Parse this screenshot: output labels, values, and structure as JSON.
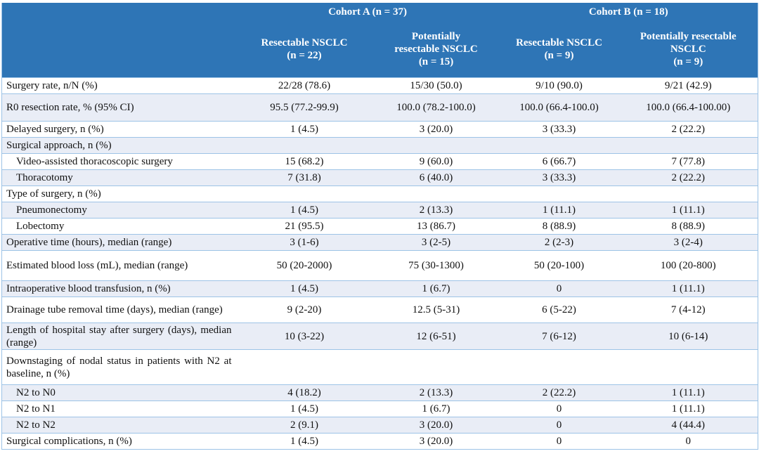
{
  "header": {
    "cohort_a": "Cohort A (n = 37)",
    "cohort_b": "Cohort B (n = 18)",
    "columns": [
      [
        "Resectable NSCLC",
        "(n = 22)"
      ],
      [
        "Potentially",
        "resectable NSCLC",
        "(n = 15)"
      ],
      [
        "Resectable NSCLC",
        "(n = 9)"
      ],
      [
        "Potentially resectable",
        "NSCLC",
        "(n = 9)"
      ]
    ]
  },
  "rows": [
    {
      "label": "Surgery rate, n/N (%)",
      "values": [
        "22/28 (78.6)",
        "15/30 (50.0)",
        "9/10 (90.0)",
        "9/21 (42.9)"
      ],
      "h": 23
    },
    {
      "label": "R0 resection rate, % (95% CI)",
      "values": [
        "95.5 (77.2-99.9)",
        "100.0 (78.2-100.0)",
        "100.0 (66.4-100.0)",
        "100.0 (66.4-100.00)"
      ],
      "h": 39
    },
    {
      "label": "Delayed surgery, n (%)",
      "values": [
        "1 (4.5)",
        "3 (20.0)",
        "3 (33.3)",
        "2 (22.2)"
      ]
    },
    {
      "label": "Surgical approach, n (%)",
      "values": [
        "",
        "",
        "",
        ""
      ]
    },
    {
      "label": "Video-assisted thoracoscopic surgery",
      "sub": true,
      "values": [
        "15 (68.2)",
        "9 (60.0)",
        "6 (66.7)",
        "7 (77.8)"
      ]
    },
    {
      "label": "Thoracotomy",
      "sub": true,
      "values": [
        "7 (31.8)",
        "6 (40.0)",
        "3 (33.3)",
        "2 (22.2)"
      ]
    },
    {
      "label": "Type of surgery, n (%)",
      "values": [
        "",
        "",
        "",
        ""
      ]
    },
    {
      "label": "Pneumonectomy",
      "sub": true,
      "values": [
        "1 (4.5)",
        "2 (13.3)",
        "1 (11.1)",
        "1 (11.1)"
      ]
    },
    {
      "label": "Lobectomy",
      "sub": true,
      "values": [
        "21 (95.5)",
        "13 (86.7)",
        "8 (88.9)",
        "8 (88.9)"
      ]
    },
    {
      "label": "Operative time (hours), median (range)",
      "values": [
        "3 (1-6)",
        "3 (2-5)",
        "2 (2-3)",
        "3 (2-4)"
      ]
    },
    {
      "label": "Estimated blood loss (mL), median (range)",
      "values": [
        "50 (20-2000)",
        "75 (30-1300)",
        "50 (20-100)",
        "100 (20-800)"
      ],
      "h": 43
    },
    {
      "label": "Intraoperative blood transfusion, n (%)",
      "values": [
        "1 (4.5)",
        "1 (6.7)",
        "0",
        "1 (11.1)"
      ]
    },
    {
      "label": "Drainage tube removal time (days), median (range)",
      "values": [
        "9 (2-20)",
        "12.5 (5-31)",
        "6 (5-22)",
        "7 (4-12)"
      ],
      "h": 37
    },
    {
      "label": "Length of hospital stay after surgery (days), median (range)",
      "values": [
        "10 (3-22)",
        "12 (6-51)",
        "7 (6-12)",
        "10 (6-14)"
      ],
      "h": 38
    },
    {
      "label": "Downstaging of nodal status in patients with N2 at baseline, n (%)",
      "values": [
        "",
        "",
        "",
        ""
      ],
      "h": 50
    },
    {
      "label": "N2 to N0",
      "sub": true,
      "values": [
        "4 (18.2)",
        "2 (13.3)",
        "2 (22.2)",
        "1 (11.1)"
      ]
    },
    {
      "label": "N2 to N1",
      "sub": true,
      "values": [
        "1 (4.5)",
        "1 (6.7)",
        "0",
        "1 (11.1)"
      ]
    },
    {
      "label": "N2 to N2",
      "sub": true,
      "values": [
        "2 (9.1)",
        "3 (20.0)",
        "0",
        "4 (44.4)"
      ]
    },
    {
      "label": "Surgical complications, n (%)",
      "values": [
        "1 (4.5)",
        "3 (20.0)",
        "0",
        "0"
      ]
    }
  ],
  "colors": {
    "header": "#2E75B6",
    "border": "#9DC3E6",
    "stripe": "#E9EDF6"
  }
}
